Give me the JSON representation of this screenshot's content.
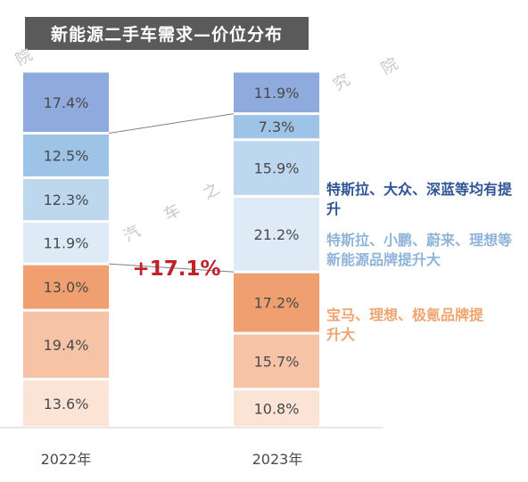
{
  "title": "新能源二手车需求—价位分布",
  "chart_data": {
    "type": "bar",
    "stacked": true,
    "categories": [
      "2022年",
      "2023年"
    ],
    "columns": [
      {
        "year": "2022年",
        "values": [
          13.6,
          19.4,
          13.0,
          11.9,
          12.3,
          12.5,
          17.4
        ]
      },
      {
        "year": "2023年",
        "values": [
          10.8,
          15.7,
          17.2,
          21.2,
          15.9,
          7.3,
          11.9
        ]
      }
    ],
    "labels_2022": [
      "13.6%",
      "19.4%",
      "13.0%",
      "11.9%",
      "12.3%",
      "12.5%",
      "17.4%"
    ],
    "labels_2023": [
      "10.8%",
      "15.7%",
      "17.2%",
      "21.2%",
      "15.9%",
      "7.3%",
      "11.9%"
    ],
    "segment_colors": [
      "#fbe3d6",
      "#f6c3a6",
      "#f0a070",
      "#deebf7",
      "#bdd7ee",
      "#9dc3e6",
      "#8faadc"
    ],
    "growth_label": "+17.1%",
    "annotations": [
      {
        "text": "特斯拉、大众、深蓝等均有提升",
        "color": "#2f5597"
      },
      {
        "text": "特斯拉、小鹏、蔚来、理想等新能源品牌提升大",
        "color": "#8fb4d9"
      },
      {
        "text": "宝马、理想、极氪品牌提升大",
        "color": "#f0a46f"
      }
    ],
    "legend": "none",
    "grid": false
  },
  "watermark": [
    "院",
    "汽",
    "车",
    "之",
    "究",
    "院"
  ]
}
